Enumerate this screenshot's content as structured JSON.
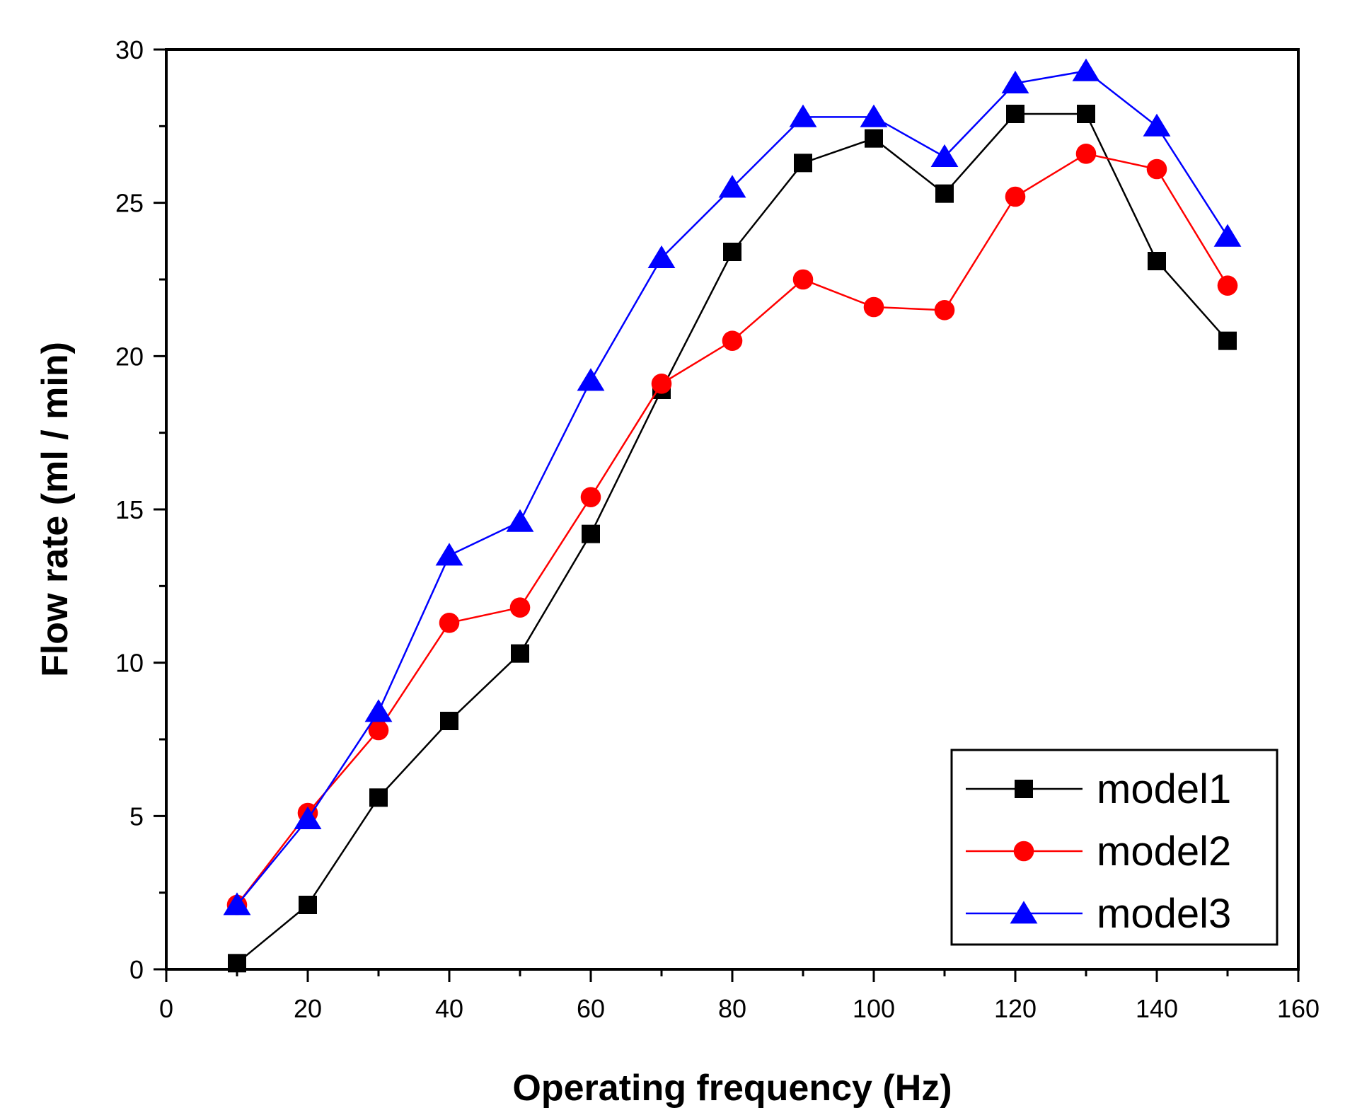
{
  "chart_data": {
    "type": "line",
    "title": "",
    "xlabel": "Operating frequency (Hz)",
    "ylabel": "Flow rate (ml / min)",
    "xlim": [
      0,
      160
    ],
    "ylim": [
      0,
      30
    ],
    "xticks": [
      0,
      20,
      40,
      60,
      80,
      100,
      120,
      140,
      160
    ],
    "yticks": [
      0,
      5,
      10,
      15,
      20,
      25,
      30
    ],
    "xtick_labels": [
      "0",
      "20",
      "40",
      "60",
      "80",
      "100",
      "120",
      "140",
      "160"
    ],
    "ytick_labels": [
      "0",
      "5",
      "10",
      "15",
      "20",
      "25",
      "30"
    ],
    "grid": false,
    "legend_position": "bottom-right",
    "x": [
      10,
      20,
      30,
      40,
      50,
      60,
      70,
      80,
      90,
      100,
      110,
      120,
      130,
      140,
      150
    ],
    "series": [
      {
        "name": "model1",
        "color": "#000000",
        "marker": "square",
        "values": [
          0.2,
          2.1,
          5.6,
          8.1,
          10.3,
          14.2,
          18.9,
          23.4,
          26.3,
          27.1,
          25.3,
          27.9,
          27.9,
          23.1,
          20.5
        ]
      },
      {
        "name": "model2",
        "color": "#ff0000",
        "marker": "circle",
        "values": [
          2.1,
          5.1,
          7.8,
          11.3,
          11.8,
          15.4,
          19.1,
          20.5,
          22.5,
          21.6,
          21.5,
          25.2,
          26.6,
          26.1,
          22.3
        ]
      },
      {
        "name": "model3",
        "color": "#0000ff",
        "marker": "triangle",
        "values": [
          2.1,
          4.9,
          8.4,
          13.5,
          14.6,
          19.2,
          23.2,
          25.5,
          27.8,
          27.8,
          26.5,
          28.9,
          29.3,
          27.5,
          23.9
        ]
      }
    ]
  }
}
